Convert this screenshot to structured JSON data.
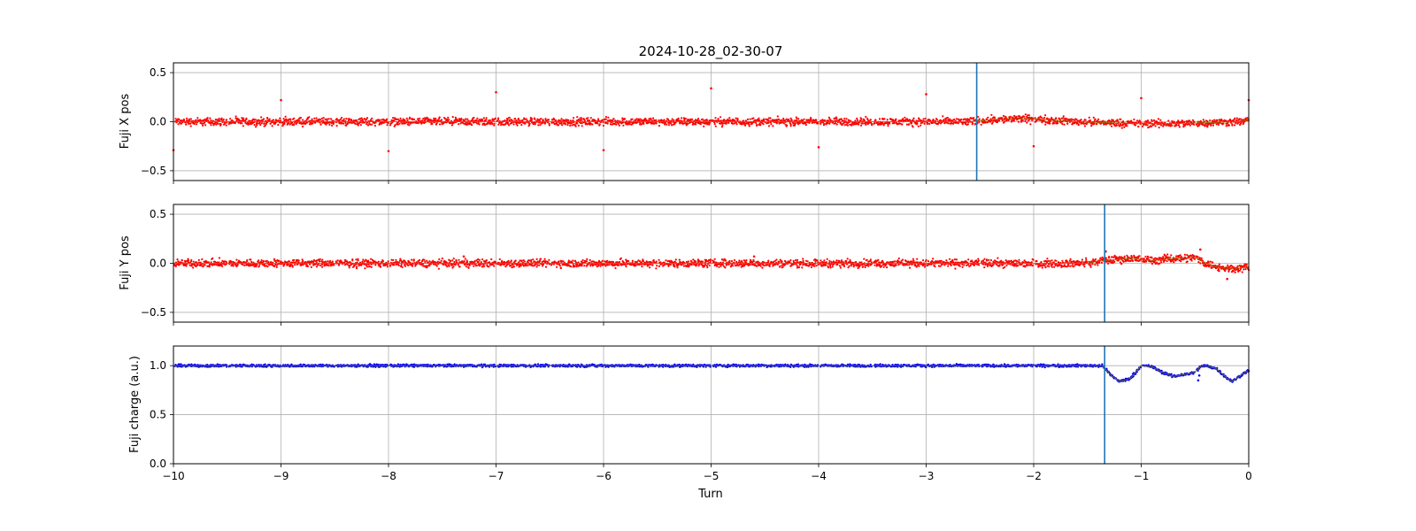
{
  "title": "2024-10-28_02-30-07",
  "x_axis": {
    "label": "Turn",
    "range": [
      -10,
      0
    ],
    "ticks": [
      -10,
      -9,
      -8,
      -7,
      -6,
      -5,
      -4,
      -3,
      -2,
      -1,
      0
    ],
    "tick_labels": [
      "−10",
      "−9",
      "−8",
      "−7",
      "−6",
      "−5",
      "−4",
      "−3",
      "−2",
      "−1",
      "0"
    ]
  },
  "chart_data": [
    {
      "type": "scatter",
      "ylabel": "Fuji X pos",
      "xlim": [
        -10,
        0
      ],
      "ylim": [
        -0.6,
        0.6
      ],
      "yticks": [
        -0.5,
        0.0,
        0.5
      ],
      "ytick_labels": [
        "−0.5",
        "0.0",
        "0.5"
      ],
      "grid": true,
      "marker_color": "#ff0000",
      "trend_color": "#808000",
      "vline": {
        "x": -2.53,
        "color": "#1f77b4"
      },
      "baseline": [
        [
          -10,
          0.0
        ],
        [
          -2.6,
          0.0
        ],
        [
          -2.4,
          0.02
        ],
        [
          -2.1,
          0.03
        ],
        [
          -1.9,
          0.02
        ],
        [
          -1.6,
          0.0
        ],
        [
          -1.3,
          -0.01
        ],
        [
          -1.0,
          -0.02
        ],
        [
          -0.7,
          -0.02
        ],
        [
          -0.4,
          -0.01
        ],
        [
          -0.1,
          0.0
        ],
        [
          0,
          0.01
        ]
      ],
      "noise": 0.03,
      "outliers": [
        [
          -10.0,
          -0.29
        ],
        [
          -9.0,
          0.22
        ],
        [
          -8.0,
          -0.3
        ],
        [
          -7.0,
          0.3
        ],
        [
          -6.0,
          -0.29
        ],
        [
          -5.0,
          0.34
        ],
        [
          -4.0,
          -0.26
        ],
        [
          -3.0,
          0.28
        ],
        [
          -2.0,
          -0.25
        ],
        [
          -1.0,
          0.24
        ],
        [
          0.0,
          0.22
        ]
      ]
    },
    {
      "type": "scatter",
      "ylabel": "Fuji Y pos",
      "xlim": [
        -10,
        0
      ],
      "ylim": [
        -0.6,
        0.6
      ],
      "yticks": [
        -0.5,
        0.0,
        0.5
      ],
      "ytick_labels": [
        "−0.5",
        "0.0",
        "0.5"
      ],
      "grid": true,
      "marker_color": "#ff0000",
      "trend_color": "#808000",
      "vline": {
        "x": -1.34,
        "color": "#1f77b4"
      },
      "baseline": [
        [
          -10,
          0.0
        ],
        [
          -1.5,
          0.0
        ],
        [
          -1.34,
          0.03
        ],
        [
          -1.1,
          0.05
        ],
        [
          -0.9,
          0.03
        ],
        [
          -0.7,
          0.05
        ],
        [
          -0.5,
          0.06
        ],
        [
          -0.4,
          0.0
        ],
        [
          -0.25,
          -0.05
        ],
        [
          -0.1,
          -0.05
        ],
        [
          0,
          -0.04
        ]
      ],
      "noise": 0.03,
      "outliers": [
        [
          -1.33,
          0.12
        ],
        [
          -0.45,
          0.14
        ],
        [
          -0.2,
          -0.16
        ],
        [
          -4.6,
          0.07
        ],
        [
          -7.3,
          0.07
        ]
      ]
    },
    {
      "type": "scatter",
      "ylabel": "Fuji charge (a.u.)",
      "xlim": [
        -10,
        0
      ],
      "ylim": [
        0.0,
        1.2
      ],
      "yticks": [
        0.0,
        0.5,
        1.0
      ],
      "ytick_labels": [
        "0.0",
        "0.5",
        "1.0"
      ],
      "grid": true,
      "marker_color": "#0000ff",
      "trend_color": "#808000",
      "vline": {
        "x": -1.34,
        "color": "#1f77b4"
      },
      "baseline": [
        [
          -10,
          1.0
        ],
        [
          -1.36,
          1.0
        ],
        [
          -1.28,
          0.9
        ],
        [
          -1.2,
          0.84
        ],
        [
          -1.1,
          0.87
        ],
        [
          -1.0,
          1.0
        ],
        [
          -0.9,
          0.99
        ],
        [
          -0.8,
          0.93
        ],
        [
          -0.7,
          0.89
        ],
        [
          -0.6,
          0.91
        ],
        [
          -0.5,
          0.93
        ],
        [
          -0.45,
          0.99
        ],
        [
          -0.4,
          1.0
        ],
        [
          -0.3,
          0.97
        ],
        [
          -0.2,
          0.87
        ],
        [
          -0.15,
          0.84
        ],
        [
          -0.05,
          0.92
        ],
        [
          0,
          0.95
        ]
      ],
      "noise": 0.01,
      "outliers": [
        [
          -0.47,
          0.85
        ],
        [
          -0.46,
          0.9
        ]
      ]
    }
  ]
}
